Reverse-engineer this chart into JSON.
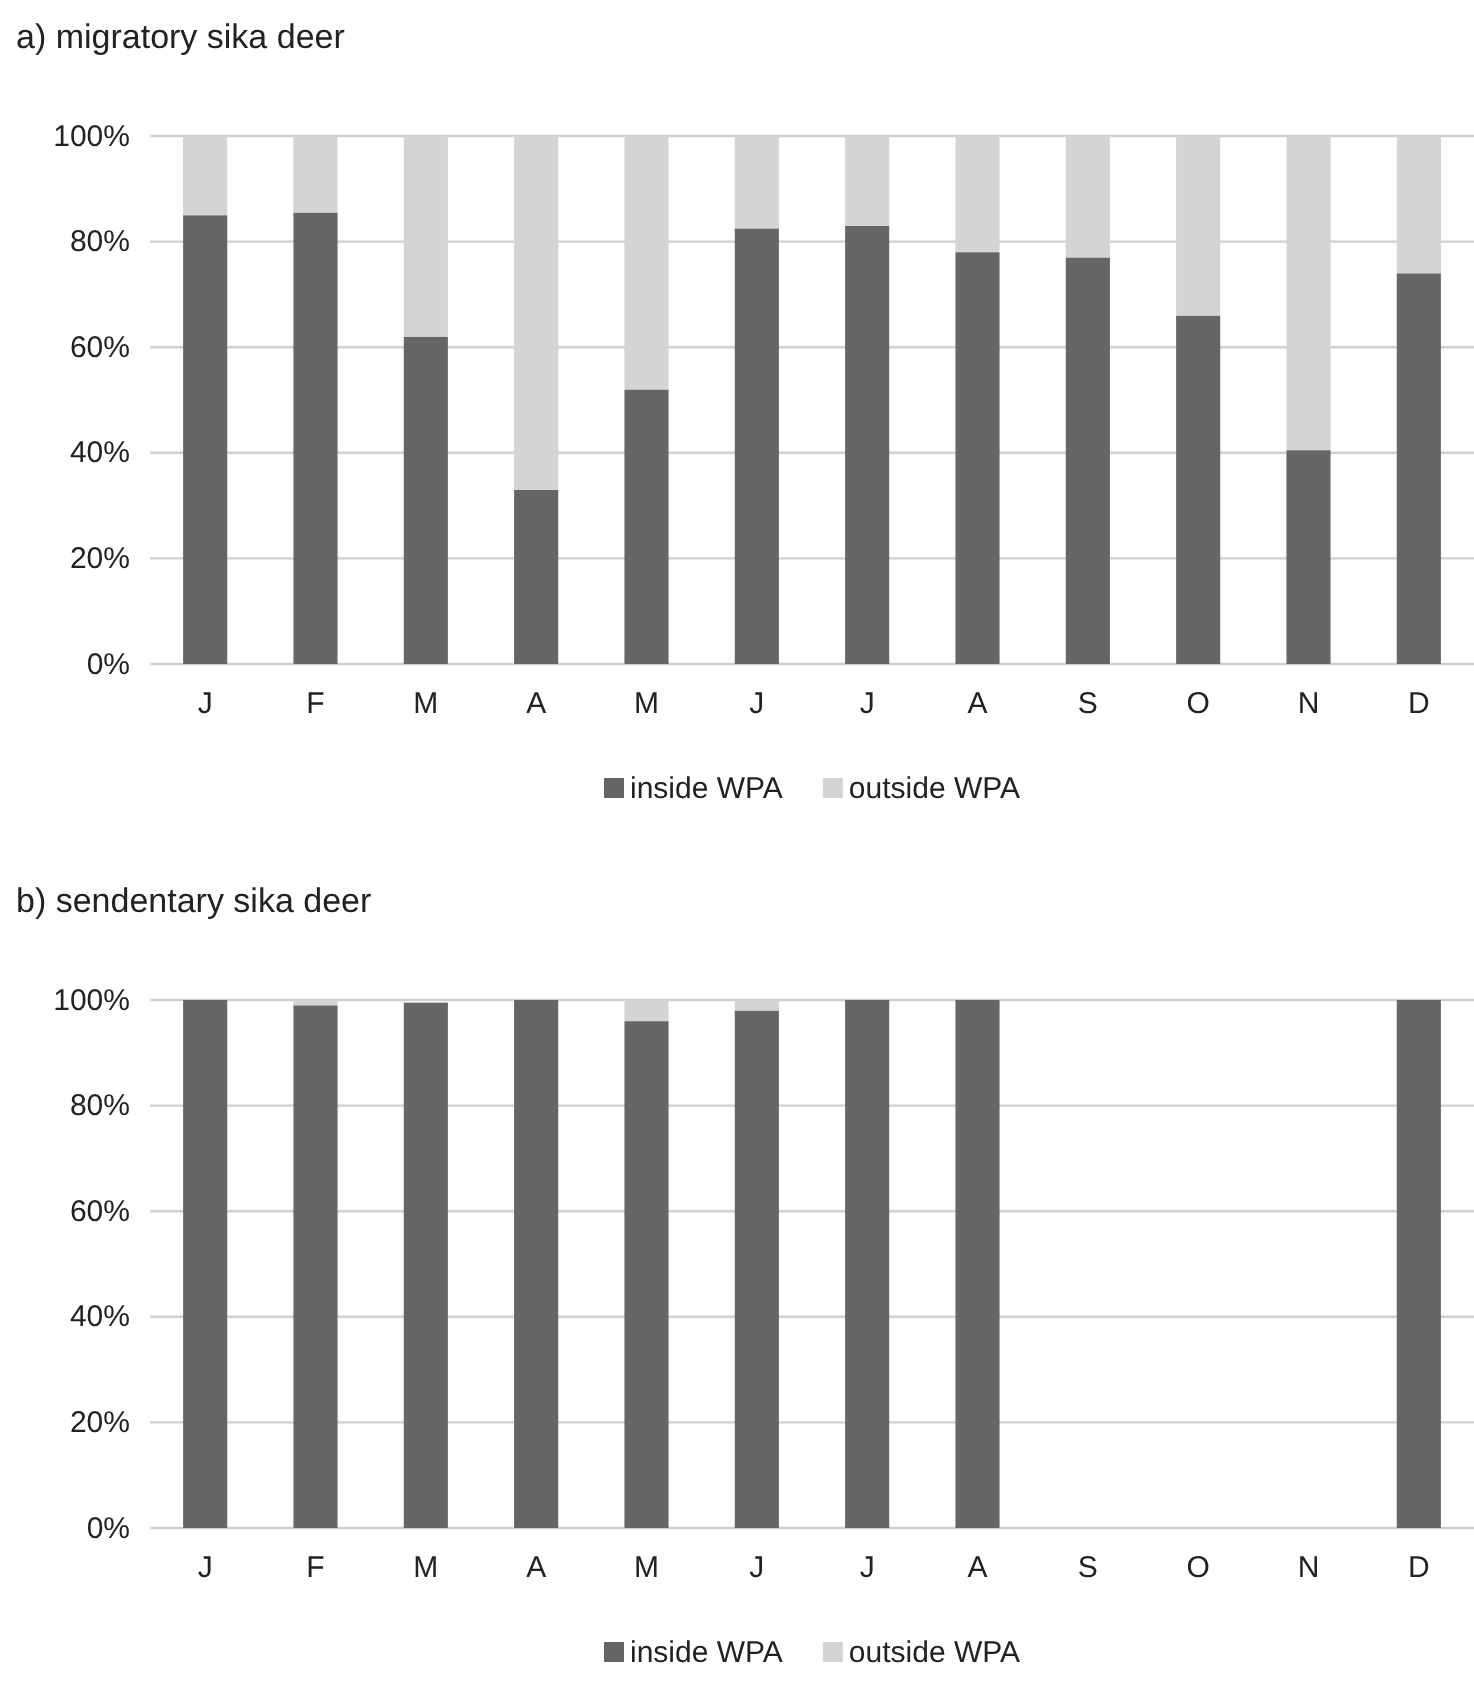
{
  "chart_data": [
    {
      "type": "bar",
      "title": "a) migratory sika deer",
      "categories": [
        "J",
        "F",
        "M",
        "A",
        "M",
        "J",
        "J",
        "A",
        "S",
        "O",
        "N",
        "D"
      ],
      "stacked": true,
      "series": [
        {
          "name": "inside WPA",
          "color": "#666666",
          "values": [
            85,
            85.5,
            62,
            33,
            52,
            82.5,
            83,
            78,
            77,
            66,
            40.5,
            74
          ]
        },
        {
          "name": "outside WPA",
          "color": "#d4d4d4",
          "values": [
            15,
            14.5,
            38,
            67,
            48,
            17.5,
            17,
            22,
            23,
            34,
            59.5,
            26
          ]
        }
      ],
      "ylim": [
        0,
        100
      ],
      "yticks": [
        {
          "value": 0,
          "label": "0%"
        },
        {
          "value": 20,
          "label": "20%"
        },
        {
          "value": 40,
          "label": "40%"
        },
        {
          "value": 60,
          "label": "60%"
        },
        {
          "value": 80,
          "label": "80%"
        },
        {
          "value": 100,
          "label": "100%"
        }
      ],
      "grid": "y",
      "legend": "bottom"
    },
    {
      "type": "bar",
      "title": "b) sendentary sika deer",
      "categories": [
        "J",
        "F",
        "M",
        "A",
        "M",
        "J",
        "J",
        "A",
        "S",
        "O",
        "N",
        "D"
      ],
      "stacked": true,
      "series": [
        {
          "name": "inside WPA",
          "color": "#666666",
          "values": [
            100,
            99,
            99.5,
            100,
            96,
            98,
            100,
            100,
            null,
            null,
            null,
            100
          ]
        },
        {
          "name": "outside WPA",
          "color": "#d4d4d4",
          "values": [
            0,
            1,
            null,
            0,
            4,
            2,
            0,
            0,
            null,
            null,
            null,
            0
          ]
        }
      ],
      "ylim": [
        0,
        100
      ],
      "yticks": [
        {
          "value": 0,
          "label": "0%"
        },
        {
          "value": 20,
          "label": "20%"
        },
        {
          "value": 40,
          "label": "40%"
        },
        {
          "value": 60,
          "label": "60%"
        },
        {
          "value": 80,
          "label": "80%"
        },
        {
          "value": 100,
          "label": "100%"
        }
      ],
      "grid": "y",
      "legend": "bottom"
    }
  ]
}
